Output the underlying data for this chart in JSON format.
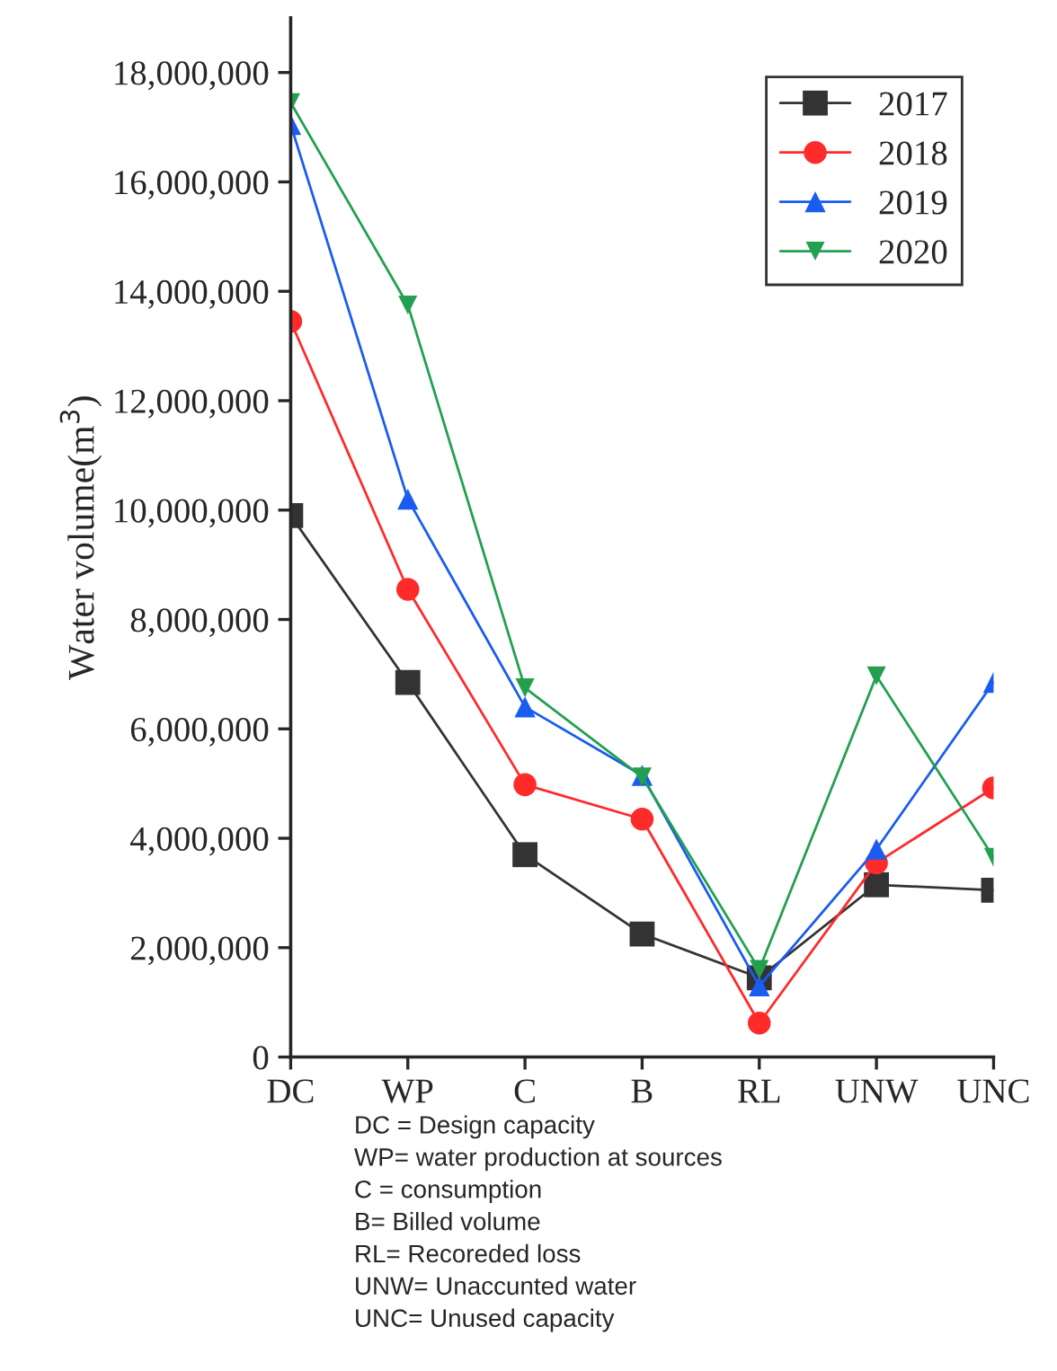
{
  "chart_data": {
    "type": "line",
    "ylabel": "Water volume(m$^{3}$)",
    "categories": [
      "DC",
      "WP",
      "C",
      "B",
      "RL",
      "UNW",
      "UNC"
    ],
    "series": [
      {
        "name": "2017",
        "color": "#333333",
        "marker": "square",
        "values": [
          9900000,
          6850000,
          3700000,
          2250000,
          1450000,
          3150000,
          3050000
        ]
      },
      {
        "name": "2018",
        "color": "#ff2a2a",
        "marker": "circle",
        "values": [
          13450000,
          8550000,
          4980000,
          4350000,
          620000,
          3550000,
          4920000
        ]
      },
      {
        "name": "2019",
        "color": "#1a5cf0",
        "marker": "triangle",
        "values": [
          17050000,
          10200000,
          6400000,
          5150000,
          1300000,
          3800000,
          6850000
        ]
      },
      {
        "name": "2020",
        "color": "#22a050",
        "marker": "triangle_down",
        "values": [
          17450000,
          13750000,
          6750000,
          5120000,
          1600000,
          6970000,
          3650000
        ]
      }
    ],
    "ylim": [
      0,
      19000000
    ],
    "yticks": [
      {
        "value": 0,
        "label": "0"
      },
      {
        "value": 2000000,
        "label": "2,000,000"
      },
      {
        "value": 4000000,
        "label": "4,000,000"
      },
      {
        "value": 6000000,
        "label": "6,000,000"
      },
      {
        "value": 8000000,
        "label": "8,000,000"
      },
      {
        "value": 10000000,
        "label": "10,000,000"
      },
      {
        "value": 12000000,
        "label": "12,000,000"
      },
      {
        "value": 14000000,
        "label": "14,000,000"
      },
      {
        "value": 16000000,
        "label": "16,000,000"
      },
      {
        "value": 18000000,
        "label": "18,000,000"
      }
    ],
    "grid": false,
    "legend": "top right",
    "line_style": "solid",
    "annotations": [
      "DC = Design capacity",
      "WP= water production at sources",
      "C = consumption",
      "B= Billed volume",
      "RL= Recoreded loss",
      "UNW= Unaccunted water",
      "UNC= Unused capacity"
    ]
  }
}
